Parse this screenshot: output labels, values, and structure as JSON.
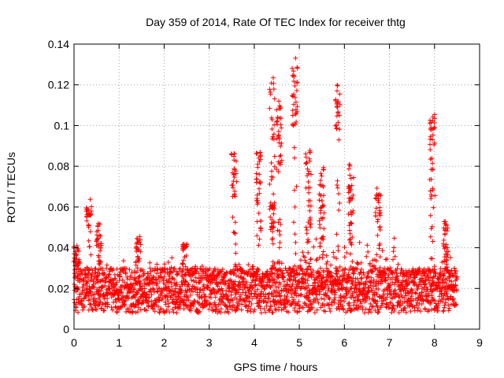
{
  "chart_data": {
    "type": "scatter",
    "title": "Day 359 of 2014, Rate Of TEC Index for receiver thtg",
    "xlabel": "GPS time / hours",
    "ylabel": "ROTI / TECUs",
    "xlim": [
      0,
      9
    ],
    "ylim": [
      0,
      0.14
    ],
    "x_ticks": [
      0,
      1,
      2,
      3,
      4,
      5,
      6,
      7,
      8,
      9
    ],
    "x_tick_labels": [
      "0",
      "1",
      "2",
      "3",
      "4",
      "5",
      "6",
      "7",
      "8",
      "9"
    ],
    "y_ticks": [
      0,
      0.02,
      0.04,
      0.06,
      0.08,
      0.1,
      0.12,
      0.14
    ],
    "y_tick_labels": [
      "0",
      "0.02",
      "0.04",
      "0.06",
      "0.08",
      "0.1",
      "0.12",
      "0.14"
    ],
    "grid": true,
    "marker": "+",
    "color": "#ff0000",
    "x_data_range": [
      0,
      8.5
    ],
    "baseline_band": [
      0.008,
      0.03
    ],
    "clusters": [
      {
        "x": 0.05,
        "y": [
          0.033,
          0.041
        ]
      },
      {
        "x": 0.33,
        "y": [
          0.055,
          0.064
        ]
      },
      {
        "x": 0.55,
        "y": [
          0.04,
          0.052
        ]
      },
      {
        "x": 1.42,
        "y": [
          0.038,
          0.046
        ]
      },
      {
        "x": 2.45,
        "y": [
          0.04,
          0.042
        ]
      },
      {
        "x": 3.55,
        "y": [
          0.065,
          0.088
        ]
      },
      {
        "x": 4.1,
        "y": [
          0.058,
          0.087
        ]
      },
      {
        "x": 4.4,
        "y": [
          0.05,
          0.124
        ]
      },
      {
        "x": 4.55,
        "y": [
          0.075,
          0.112
        ]
      },
      {
        "x": 4.9,
        "y": [
          0.1,
          0.135
        ]
      },
      {
        "x": 5.2,
        "y": [
          0.05,
          0.088
        ]
      },
      {
        "x": 5.5,
        "y": [
          0.045,
          0.082
        ]
      },
      {
        "x": 5.85,
        "y": [
          0.098,
          0.12
        ]
      },
      {
        "x": 6.15,
        "y": [
          0.05,
          0.083
        ]
      },
      {
        "x": 6.75,
        "y": [
          0.055,
          0.07
        ]
      },
      {
        "x": 7.95,
        "y": [
          0.065,
          0.108
        ]
      },
      {
        "x": 8.25,
        "y": [
          0.038,
          0.053
        ]
      }
    ]
  }
}
